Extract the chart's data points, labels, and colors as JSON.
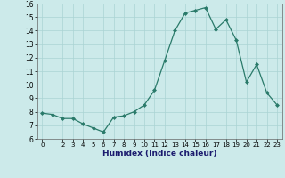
{
  "x": [
    0,
    1,
    2,
    3,
    4,
    5,
    6,
    7,
    8,
    9,
    10,
    11,
    12,
    13,
    14,
    15,
    16,
    17,
    18,
    19,
    20,
    21,
    22,
    23
  ],
  "y": [
    7.9,
    7.8,
    7.5,
    7.5,
    7.1,
    6.8,
    6.5,
    7.6,
    7.7,
    8.0,
    8.5,
    9.6,
    11.8,
    14.0,
    15.3,
    15.5,
    15.7,
    14.1,
    14.8,
    13.3,
    10.2,
    11.5,
    9.4,
    8.5
  ],
  "xlabel": "Humidex (Indice chaleur)",
  "ylim": [
    6,
    16
  ],
  "xlim": [
    -0.5,
    23.5
  ],
  "yticks": [
    6,
    7,
    8,
    9,
    10,
    11,
    12,
    13,
    14,
    15,
    16
  ],
  "xticks": [
    0,
    2,
    3,
    4,
    5,
    6,
    7,
    8,
    9,
    10,
    11,
    12,
    13,
    14,
    15,
    16,
    17,
    18,
    19,
    20,
    21,
    22,
    23
  ],
  "xtick_labels": [
    "0",
    "2",
    "3",
    "4",
    "5",
    "6",
    "7",
    "8",
    "9",
    "10",
    "11",
    "12",
    "13",
    "14",
    "15",
    "16",
    "17",
    "18",
    "19",
    "20",
    "21",
    "22",
    "23"
  ],
  "line_color": "#2a7a6a",
  "marker": "D",
  "marker_size": 2.0,
  "linewidth": 0.9,
  "bg_color": "#cceaea",
  "grid_color": "#aad4d4",
  "xlabel_color": "#1a1a6e",
  "xlabel_fontsize": 6.5,
  "xlabel_fontweight": "bold",
  "ytick_fontsize": 5.5,
  "xtick_fontsize": 5.0
}
